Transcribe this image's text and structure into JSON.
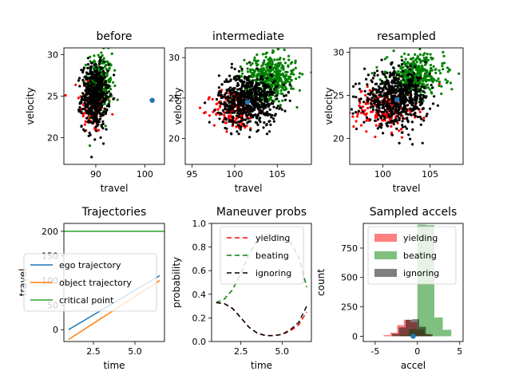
{
  "chart_data": [
    {
      "type": "scatter",
      "title": "before",
      "xlabel": "travel",
      "ylabel": "velocity",
      "xlim": [
        83.5,
        104
      ],
      "ylim": [
        16.8,
        30.8
      ],
      "xticks": [
        90,
        100
      ],
      "yticks": [
        20,
        25,
        30
      ],
      "clouds": [
        {
          "color": "#ff0000",
          "cx": 89.5,
          "cy": 24.2,
          "sx": 1.4,
          "sy": 1.9,
          "n": 150
        },
        {
          "color": "#008000",
          "cx": 90.8,
          "cy": 26.6,
          "sx": 1.3,
          "sy": 1.8,
          "n": 260
        },
        {
          "color": "#000000",
          "cx": 89.8,
          "cy": 25.0,
          "sx": 1.3,
          "sy": 1.9,
          "n": 500
        }
      ],
      "marker": {
        "color": "#1f77b4",
        "x": 101.5,
        "y": 24.5
      }
    },
    {
      "type": "scatter",
      "title": "intermediate",
      "xlabel": "travel",
      "ylabel": "velocity",
      "xlim": [
        94.2,
        109
      ],
      "ylim": [
        16.8,
        31.2
      ],
      "xticks": [
        95,
        100,
        105
      ],
      "yticks": [
        20,
        25,
        30
      ],
      "clouds": [
        {
          "color": "#ff0000",
          "cx": 100.0,
          "cy": 23.5,
          "sx": 1.3,
          "sy": 1.2,
          "n": 160
        },
        {
          "color": "#008000",
          "cx": 104.2,
          "cy": 27.6,
          "sx": 1.5,
          "sy": 1.3,
          "n": 450
        },
        {
          "color": "#000000",
          "cx": 101.6,
          "cy": 24.8,
          "sx": 1.7,
          "sy": 1.6,
          "n": 650
        }
      ],
      "marker": {
        "color": "#1f77b4",
        "x": 101.5,
        "y": 24.5
      }
    },
    {
      "type": "scatter",
      "title": "resampled",
      "xlabel": "travel",
      "ylabel": "velocity",
      "xlim": [
        96.5,
        108.5
      ],
      "ylim": [
        17.0,
        30.5
      ],
      "xticks": [
        100,
        105
      ],
      "yticks": [
        20,
        25,
        30
      ],
      "clouds": [
        {
          "color": "#ff0000",
          "cx": 100.2,
          "cy": 23.5,
          "sx": 1.6,
          "sy": 1.3,
          "n": 200
        },
        {
          "color": "#008000",
          "cx": 103.5,
          "cy": 27.3,
          "sx": 1.5,
          "sy": 1.2,
          "n": 380
        },
        {
          "color": "#000000",
          "cx": 101.4,
          "cy": 24.6,
          "sx": 1.7,
          "sy": 1.5,
          "n": 600
        }
      ],
      "marker": {
        "color": "#1f77b4",
        "x": 101.5,
        "y": 24.5
      }
    },
    {
      "type": "line",
      "title": "Trajectories",
      "xlabel": "time",
      "ylabel": "travel",
      "xlim": [
        0.72,
        6.78
      ],
      "ylim": [
        -24,
        216
      ],
      "xticks": [
        2.5,
        5.0
      ],
      "yticks": [
        0,
        50,
        100,
        150,
        200
      ],
      "series": [
        {
          "name": "ego trajectory",
          "color": "#1f77b4",
          "x": [
            1.0,
            6.5
          ],
          "y": [
            0,
            110
          ]
        },
        {
          "name": "object trajectory",
          "color": "#ff7f0e",
          "x": [
            1.0,
            6.5
          ],
          "y": [
            -20,
            100
          ]
        },
        {
          "name": "critical point",
          "color": "#2ca02c",
          "x": [
            0.72,
            6.78
          ],
          "y": [
            200,
            200
          ]
        }
      ],
      "legend": "center-left"
    },
    {
      "type": "line",
      "title": "Maneuver probs",
      "xlabel": "time",
      "ylabel": "probability",
      "xlim": [
        0.72,
        6.78
      ],
      "ylim": [
        0.0,
        1.0
      ],
      "xticks": [
        2.5,
        5.0
      ],
      "yticks": [
        0.0,
        0.2,
        0.4,
        0.6,
        0.8,
        1.0
      ],
      "series": [
        {
          "name": "yielding",
          "color": "#ff0000",
          "dash": "6,4",
          "x": [
            1.0,
            1.5,
            2.0,
            2.5,
            3.0,
            3.5,
            4.0,
            4.5,
            5.0,
            5.5,
            6.0,
            6.5
          ],
          "y": [
            0.33,
            0.32,
            0.28,
            0.2,
            0.12,
            0.07,
            0.05,
            0.05,
            0.06,
            0.09,
            0.14,
            0.25
          ]
        },
        {
          "name": "beating",
          "color": "#008000",
          "dash": "6,4",
          "x": [
            1.0,
            1.5,
            2.0,
            2.5,
            3.0,
            3.5,
            4.0,
            4.5,
            5.0,
            5.5,
            6.0,
            6.5
          ],
          "y": [
            0.33,
            0.36,
            0.44,
            0.58,
            0.74,
            0.86,
            0.9,
            0.9,
            0.88,
            0.84,
            0.72,
            0.46
          ]
        },
        {
          "name": "ignoring",
          "color": "#000000",
          "dash": "6,4",
          "x": [
            1.0,
            1.5,
            2.0,
            2.5,
            3.0,
            3.5,
            4.0,
            4.5,
            5.0,
            5.5,
            6.0,
            6.5
          ],
          "y": [
            0.33,
            0.32,
            0.28,
            0.2,
            0.12,
            0.07,
            0.05,
            0.05,
            0.06,
            0.1,
            0.16,
            0.3
          ]
        }
      ],
      "legend": "top-center"
    },
    {
      "type": "bar",
      "title": "Sampled accels",
      "xlabel": "accel",
      "ylabel": "count",
      "xlim": [
        -6.4,
        5.4
      ],
      "ylim": [
        -45,
        960
      ],
      "xticks": [
        -5,
        0,
        5
      ],
      "yticks": [
        0,
        250,
        500,
        750
      ],
      "series": [
        {
          "name": "yielding",
          "color": "#ff0000",
          "opacity": 0.5,
          "edges": [
            -4.0,
            -3.2,
            -2.4,
            -1.6,
            -0.8,
            0.0,
            0.8,
            1.6
          ],
          "values": [
            10,
            30,
            95,
            140,
            120,
            55,
            20
          ]
        },
        {
          "name": "beating",
          "color": "#008000",
          "opacity": 0.5,
          "edges": [
            -2.0,
            -1.0,
            0.0,
            1.0,
            2.0,
            3.0,
            4.0
          ],
          "values": [
            10,
            60,
            950,
            945,
            160,
            55
          ]
        },
        {
          "name": "ignoring",
          "color": "#000000",
          "opacity": 0.5,
          "edges": [
            -3.0,
            -2.2,
            -1.4,
            -0.6,
            0.2,
            1.0,
            1.8
          ],
          "values": [
            20,
            75,
            140,
            145,
            80,
            15
          ]
        }
      ],
      "marker": {
        "color": "#1f77b4",
        "x": -0.5,
        "y": 0
      },
      "legend": "top-center"
    }
  ]
}
